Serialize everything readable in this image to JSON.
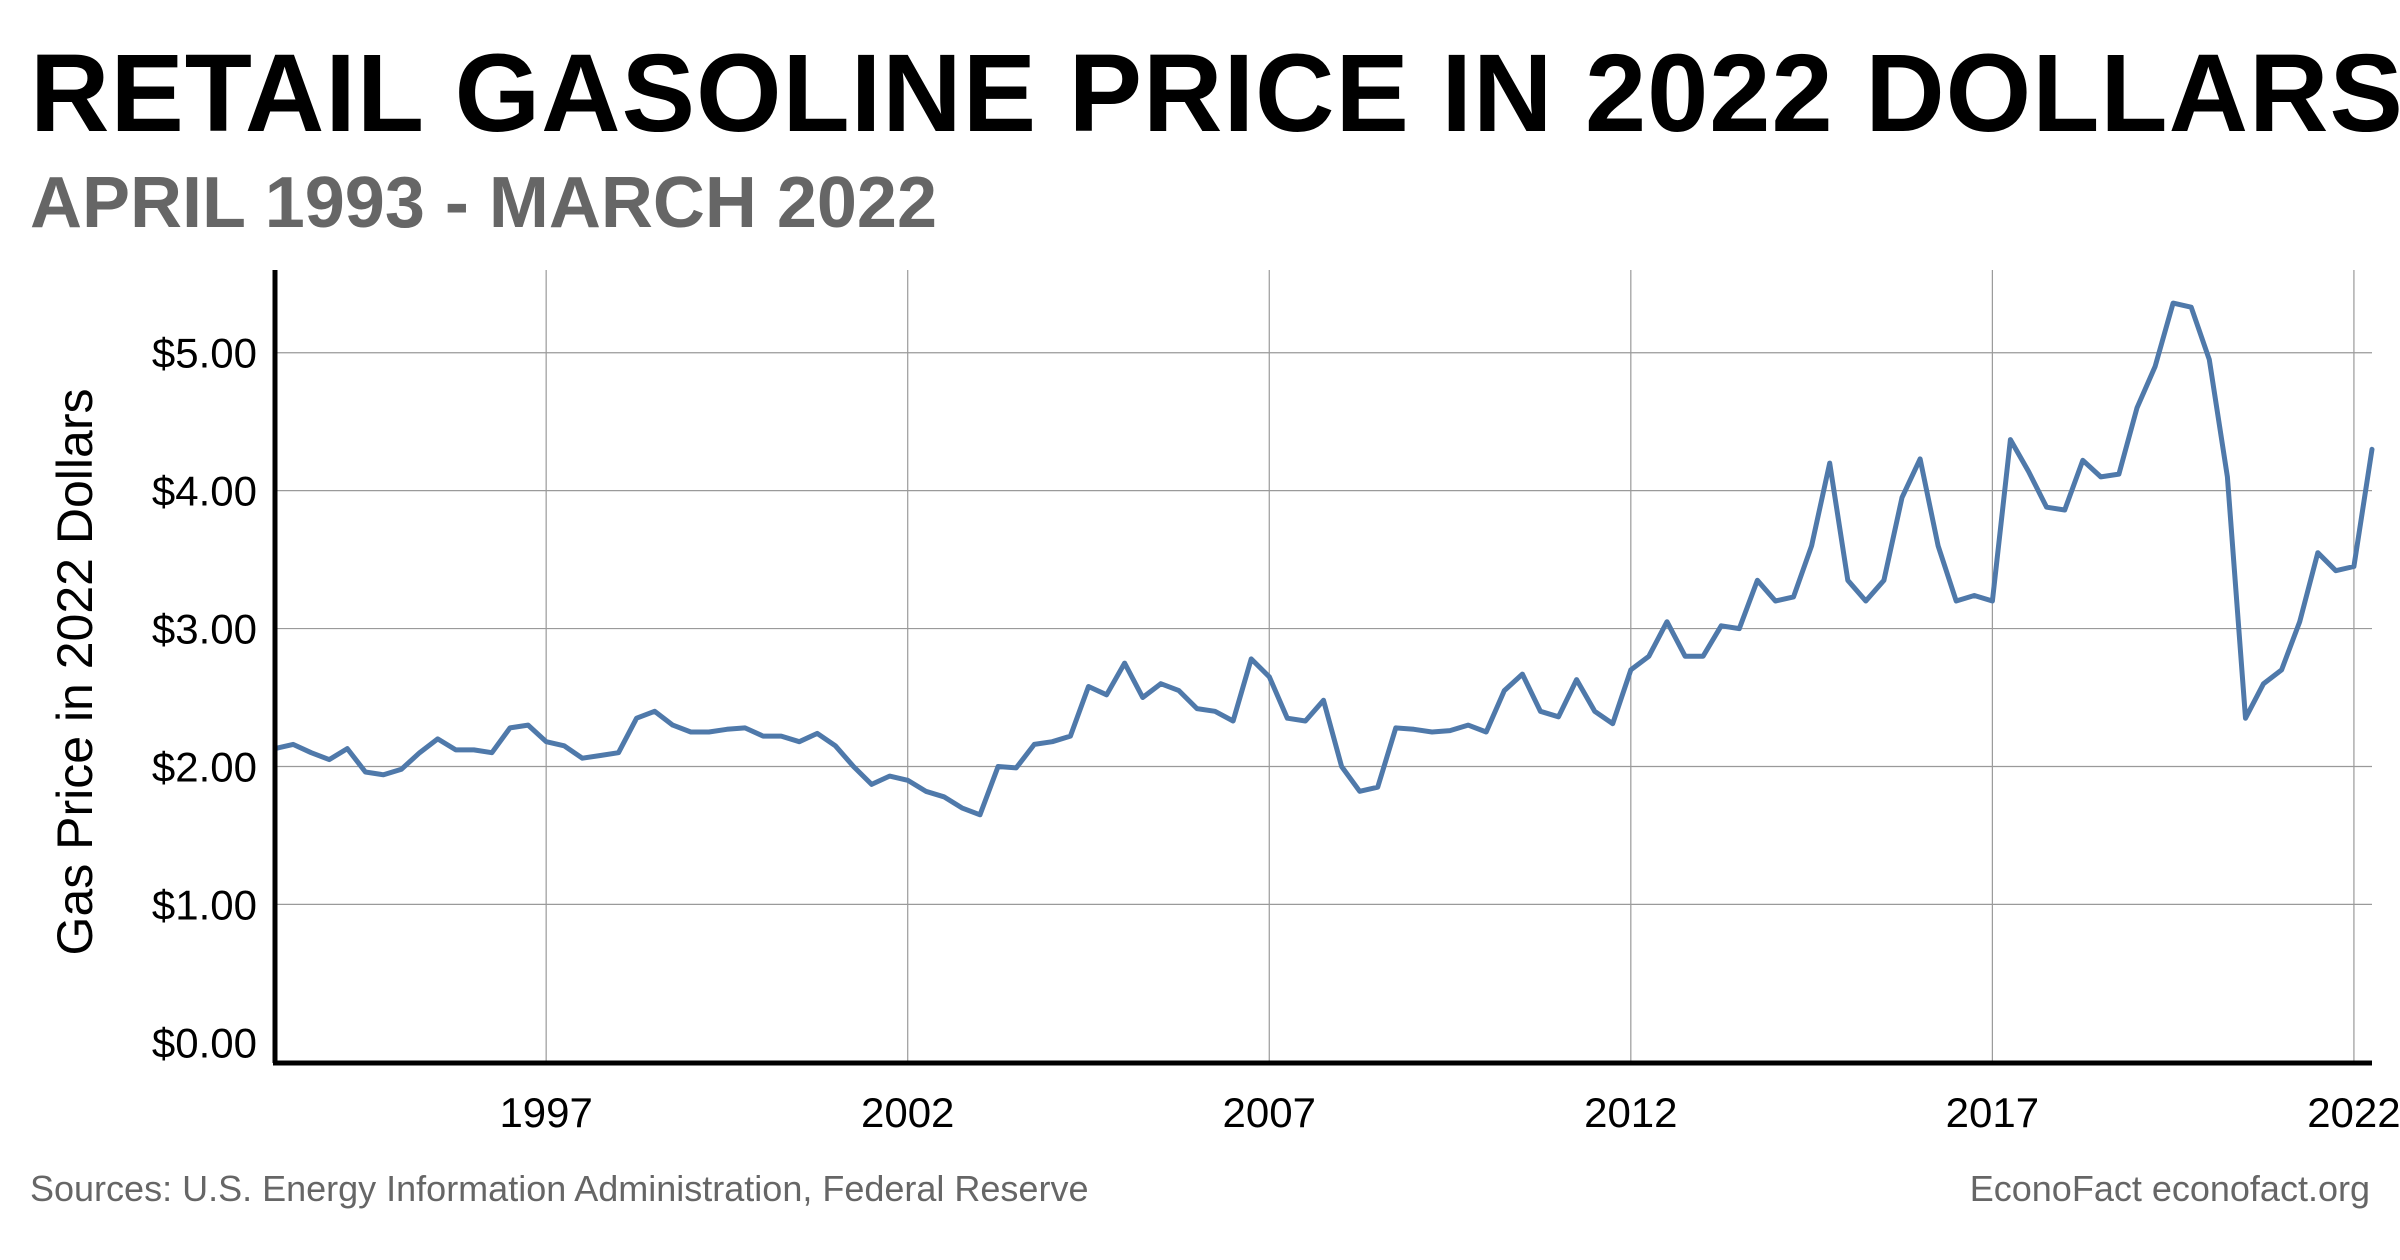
{
  "chart_data": {
    "type": "line",
    "title": "RETAIL GASOLINE PRICE IN 2022 DOLLARS",
    "subtitle": "APRIL 1993 - MARCH 2022",
    "ylabel": "Gas Price in 2022 Dollars",
    "xlabel": "",
    "xlim": [
      1993.25,
      2022.25
    ],
    "ylim": [
      -0.15,
      5.6
    ],
    "grid": true,
    "line_color": "#4f79aa",
    "x_ticks": [
      {
        "value": 1997,
        "label": "1997"
      },
      {
        "value": 2002,
        "label": "2002"
      },
      {
        "value": 2007,
        "label": "2007"
      },
      {
        "value": 2012,
        "label": "2012"
      },
      {
        "value": 2017,
        "label": "2017"
      },
      {
        "value": 2022,
        "label": "2022"
      }
    ],
    "y_ticks": [
      {
        "value": 0,
        "label": "$0.00"
      },
      {
        "value": 1,
        "label": "$1.00"
      },
      {
        "value": 2,
        "label": "$2.00"
      },
      {
        "value": 3,
        "label": "$3.00"
      },
      {
        "value": 4,
        "label": "$4.00"
      },
      {
        "value": 5,
        "label": "$5.00"
      }
    ],
    "series": [
      {
        "name": "",
        "points": [
          [
            1993.25,
            2.13
          ],
          [
            1993.5,
            2.16
          ],
          [
            1993.75,
            2.1
          ],
          [
            1994.0,
            2.05
          ],
          [
            1994.25,
            2.13
          ],
          [
            1994.5,
            1.96
          ],
          [
            1994.75,
            1.94
          ],
          [
            1995.0,
            1.98
          ],
          [
            1995.25,
            2.1
          ],
          [
            1995.5,
            2.2
          ],
          [
            1995.75,
            2.12
          ],
          [
            1996.0,
            2.12
          ],
          [
            1996.25,
            2.1
          ],
          [
            1996.5,
            2.28
          ],
          [
            1996.75,
            2.3
          ],
          [
            1997.0,
            2.18
          ],
          [
            1997.25,
            2.15
          ],
          [
            1997.5,
            2.06
          ],
          [
            1997.75,
            2.08
          ],
          [
            1998.0,
            2.1
          ],
          [
            1998.25,
            2.35
          ],
          [
            1998.5,
            2.4
          ],
          [
            1998.75,
            2.3
          ],
          [
            1999.0,
            2.25
          ],
          [
            1999.25,
            2.25
          ],
          [
            1999.5,
            2.27
          ],
          [
            1999.75,
            2.28
          ],
          [
            2000.0,
            2.22
          ],
          [
            2000.25,
            2.22
          ],
          [
            2000.5,
            2.18
          ],
          [
            2000.75,
            2.24
          ],
          [
            2001.0,
            2.15
          ],
          [
            2001.25,
            2.0
          ],
          [
            2001.5,
            1.87
          ],
          [
            2001.75,
            1.93
          ],
          [
            2002.0,
            1.9
          ],
          [
            2002.25,
            1.82
          ],
          [
            2002.5,
            1.78
          ],
          [
            2002.75,
            1.7
          ],
          [
            2003.0,
            1.65
          ],
          [
            2003.25,
            2.0
          ],
          [
            2003.5,
            1.99
          ],
          [
            2003.75,
            2.16
          ],
          [
            2004.0,
            2.18
          ],
          [
            2004.25,
            2.22
          ],
          [
            2004.5,
            2.58
          ],
          [
            2004.75,
            2.52
          ],
          [
            2005.0,
            2.75
          ],
          [
            2005.25,
            2.5
          ],
          [
            2005.5,
            2.6
          ],
          [
            2005.75,
            2.55
          ],
          [
            2006.0,
            2.42
          ],
          [
            2006.25,
            2.4
          ],
          [
            2006.5,
            2.33
          ],
          [
            2006.75,
            2.78
          ],
          [
            2007.0,
            2.65
          ],
          [
            2007.25,
            2.35
          ],
          [
            2007.5,
            2.33
          ],
          [
            2007.75,
            2.48
          ],
          [
            2008.0,
            2.0
          ],
          [
            2008.25,
            1.82
          ],
          [
            2008.5,
            1.85
          ],
          [
            2008.75,
            2.28
          ],
          [
            2009.0,
            2.27
          ],
          [
            2009.25,
            2.25
          ],
          [
            2009.5,
            2.26
          ],
          [
            2009.75,
            2.3
          ],
          [
            2010.0,
            2.25
          ],
          [
            2010.25,
            2.55
          ],
          [
            2010.5,
            2.67
          ],
          [
            2010.75,
            2.4
          ],
          [
            2011.0,
            2.36
          ],
          [
            2011.25,
            2.63
          ],
          [
            2011.5,
            2.4
          ],
          [
            2011.75,
            2.31
          ],
          [
            2012.0,
            2.7
          ],
          [
            2012.25,
            2.8
          ],
          [
            2012.5,
            3.05
          ],
          [
            2012.75,
            2.8
          ],
          [
            2013.0,
            2.8
          ],
          [
            2013.25,
            3.02
          ],
          [
            2013.5,
            3.0
          ],
          [
            2013.75,
            3.35
          ],
          [
            2014.0,
            3.2
          ],
          [
            2014.25,
            3.23
          ],
          [
            2014.5,
            3.6
          ],
          [
            2014.75,
            4.2
          ],
          [
            2015.0,
            3.35
          ],
          [
            2015.25,
            3.2
          ],
          [
            2015.5,
            3.35
          ],
          [
            2015.75,
            3.95
          ],
          [
            2016.0,
            4.23
          ],
          [
            2016.25,
            3.6
          ],
          [
            2016.5,
            3.2
          ],
          [
            2016.75,
            3.24
          ],
          [
            2017.0,
            3.2
          ],
          [
            2017.25,
            4.37
          ],
          [
            2017.5,
            4.14
          ],
          [
            2017.75,
            3.88
          ],
          [
            2018.0,
            3.86
          ],
          [
            2018.25,
            4.22
          ],
          [
            2018.5,
            4.1
          ],
          [
            2018.75,
            4.12
          ],
          [
            2019.0,
            4.6
          ],
          [
            2019.25,
            4.9
          ],
          [
            2019.5,
            5.36
          ],
          [
            2019.75,
            5.33
          ],
          [
            2020.0,
            4.95
          ],
          [
            2020.25,
            4.1
          ],
          [
            2020.5,
            2.35
          ],
          [
            2020.75,
            2.6
          ],
          [
            2021.0,
            2.7
          ],
          [
            2021.25,
            3.05
          ],
          [
            2021.5,
            3.55
          ],
          [
            2021.75,
            3.42
          ],
          [
            2022.0,
            3.45
          ],
          [
            2022.25,
            4.3
          ]
        ]
      }
    ]
  },
  "footer": {
    "source": "Sources: U.S. Energy Information Administration, Federal Reserve",
    "credit": "EconoFact econofact.org"
  }
}
